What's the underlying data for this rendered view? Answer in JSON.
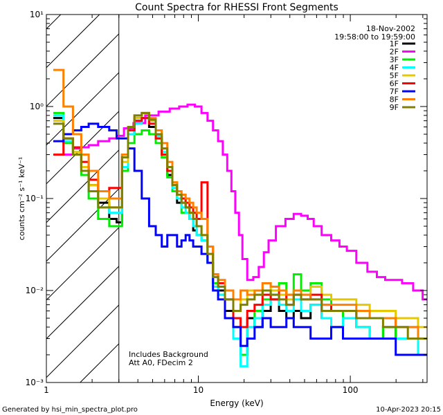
{
  "chart_data": {
    "type": "line",
    "title": "Count Spectra for RHESSI Front Segments",
    "xlabel": "Energy (keV)",
    "ylabel": "counts cm⁻² s⁻¹ keV⁻¹",
    "xscale": "log",
    "yscale": "log",
    "xlim": [
      1.0,
      320.0
    ],
    "ylim": [
      0.001,
      10.0
    ],
    "x_ticks": [
      {
        "value": 1,
        "label": "1"
      },
      {
        "value": 10,
        "label": "10"
      },
      {
        "value": 100,
        "label": "100"
      }
    ],
    "y_ticks": [
      {
        "value": 0.001,
        "label": "10⁻³"
      },
      {
        "value": 0.01,
        "label": "10⁻²"
      },
      {
        "value": 0.1,
        "label": "10⁻¹"
      },
      {
        "value": 1,
        "label": "10⁰"
      },
      {
        "value": 10,
        "label": "10¹"
      }
    ],
    "hatched_region_x": [
      1.0,
      3.0
    ],
    "date": "18-Nov-2002",
    "time_range": "19:58:00 to 19:59:00",
    "annotations": [
      "Includes Background",
      "Att A0, FDecim 2"
    ],
    "legend_position": "top-right",
    "series": [
      {
        "name": "1F",
        "color": "#000000",
        "x": [
          1.2,
          1.4,
          1.6,
          1.8,
          2.0,
          2.4,
          2.8,
          3.0,
          3.3,
          3.6,
          4.0,
          4.5,
          5.0,
          5.5,
          6.0,
          6.5,
          7.0,
          7.5,
          8.0,
          8.5,
          9.0,
          9.5,
          10.0,
          11.0,
          12.0,
          13.0,
          14.0,
          16.0,
          18.0,
          20.0,
          22.0,
          25.0,
          28.0,
          32.0,
          36.0,
          40.0,
          45.0,
          50.0,
          60.0,
          70.0,
          80.0,
          100.0,
          120.0,
          150.0,
          180.0,
          220.0,
          260.0,
          300.0
        ],
        "y": [
          0.75,
          0.45,
          0.35,
          0.22,
          0.14,
          0.09,
          0.06,
          0.055,
          0.2,
          0.5,
          0.75,
          0.75,
          0.6,
          0.45,
          0.3,
          0.18,
          0.12,
          0.09,
          0.09,
          0.08,
          0.06,
          0.045,
          0.04,
          0.035,
          0.02,
          0.012,
          0.01,
          0.006,
          0.004,
          0.002,
          0.005,
          0.004,
          0.006,
          0.008,
          0.006,
          0.005,
          0.006,
          0.005,
          0.007,
          0.005,
          0.004,
          0.005,
          0.004,
          0.003,
          0.004,
          0.003,
          0.003,
          0.002
        ]
      },
      {
        "name": "2F",
        "color": "#ff00ff",
        "x": [
          1.2,
          1.4,
          1.6,
          1.8,
          2.0,
          2.4,
          2.8,
          3.0,
          3.5,
          4.0,
          5.0,
          6.0,
          7.0,
          8.0,
          9.0,
          10.0,
          11.0,
          12.0,
          13.0,
          14.0,
          15.0,
          16.0,
          17.0,
          18.0,
          19.0,
          20.0,
          22.0,
          24.0,
          26.0,
          28.0,
          30.0,
          35.0,
          40.0,
          45.0,
          50.0,
          55.0,
          60.0,
          70.0,
          80.0,
          90.0,
          100.0,
          120.0,
          140.0,
          160.0,
          180.0,
          200.0,
          240.0,
          280.0,
          320.0
        ],
        "y": [
          0.3,
          0.3,
          0.35,
          0.36,
          0.38,
          0.42,
          0.45,
          0.48,
          0.58,
          0.66,
          0.8,
          0.88,
          0.95,
          1.0,
          1.05,
          1.0,
          0.85,
          0.7,
          0.55,
          0.42,
          0.3,
          0.2,
          0.12,
          0.07,
          0.04,
          0.022,
          0.013,
          0.014,
          0.018,
          0.026,
          0.035,
          0.05,
          0.06,
          0.068,
          0.065,
          0.06,
          0.05,
          0.04,
          0.035,
          0.03,
          0.027,
          0.02,
          0.016,
          0.014,
          0.013,
          0.013,
          0.012,
          0.01,
          0.008
        ]
      },
      {
        "name": "3F",
        "color": "#00ee00",
        "x": [
          1.2,
          1.4,
          1.6,
          1.8,
          2.0,
          2.4,
          2.8,
          3.0,
          3.3,
          3.6,
          4.0,
          4.5,
          5.0,
          5.5,
          6.0,
          6.5,
          7.0,
          7.5,
          8.0,
          8.5,
          9.0,
          9.5,
          10.0,
          11.0,
          12.0,
          13.0,
          14.0,
          16.0,
          18.0,
          20.0,
          22.0,
          25.0,
          28.0,
          32.0,
          36.0,
          40.0,
          45.0,
          50.0,
          60.0,
          70.0,
          80.0,
          100.0,
          120.0,
          150.0,
          180.0,
          220.0,
          260.0,
          300.0
        ],
        "y": [
          0.85,
          0.4,
          0.3,
          0.18,
          0.1,
          0.06,
          0.05,
          0.05,
          0.2,
          0.4,
          0.5,
          0.55,
          0.5,
          0.4,
          0.28,
          0.17,
          0.12,
          0.1,
          0.07,
          0.07,
          0.06,
          0.05,
          0.04,
          0.035,
          0.02,
          0.012,
          0.009,
          0.005,
          0.004,
          0.002,
          0.004,
          0.006,
          0.008,
          0.01,
          0.012,
          0.009,
          0.015,
          0.01,
          0.012,
          0.008,
          0.006,
          0.005,
          0.004,
          0.003,
          0.004,
          0.003,
          0.003,
          0.002
        ]
      },
      {
        "name": "4F",
        "color": "#00ffff",
        "x": [
          1.2,
          1.4,
          1.6,
          1.8,
          2.0,
          2.4,
          2.8,
          3.0,
          3.3,
          3.6,
          4.0,
          4.5,
          5.0,
          5.5,
          6.0,
          6.5,
          7.0,
          7.5,
          8.0,
          8.5,
          9.0,
          9.5,
          10.0,
          11.0,
          12.0,
          13.0,
          14.0,
          16.0,
          18.0,
          20.0,
          22.0,
          25.0,
          28.0,
          32.0,
          36.0,
          40.0,
          45.0,
          50.0,
          60.0,
          70.0,
          80.0,
          100.0,
          120.0,
          150.0,
          180.0,
          220.0,
          260.0,
          300.0
        ],
        "y": [
          0.8,
          0.42,
          0.32,
          0.2,
          0.12,
          0.08,
          0.07,
          0.07,
          0.22,
          0.5,
          0.65,
          0.75,
          0.65,
          0.48,
          0.32,
          0.2,
          0.13,
          0.1,
          0.08,
          0.07,
          0.06,
          0.05,
          0.04,
          0.035,
          0.02,
          0.011,
          0.009,
          0.005,
          0.003,
          0.0015,
          0.004,
          0.005,
          0.007,
          0.009,
          0.007,
          0.006,
          0.008,
          0.006,
          0.007,
          0.005,
          0.004,
          0.005,
          0.004,
          0.003,
          0.003,
          0.003,
          0.003,
          0.002
        ]
      },
      {
        "name": "5F",
        "color": "#e6c800",
        "x": [
          1.2,
          1.4,
          1.6,
          1.8,
          2.0,
          2.4,
          2.8,
          3.0,
          3.3,
          3.6,
          4.0,
          4.5,
          5.0,
          5.5,
          6.0,
          6.5,
          7.0,
          7.5,
          8.0,
          8.5,
          9.0,
          9.5,
          10.0,
          11.0,
          12.0,
          13.0,
          14.0,
          16.0,
          18.0,
          20.0,
          22.0,
          25.0,
          28.0,
          32.0,
          36.0,
          40.0,
          45.0,
          50.0,
          60.0,
          70.0,
          80.0,
          100.0,
          120.0,
          150.0,
          180.0,
          220.0,
          260.0,
          300.0
        ],
        "y": [
          0.7,
          0.45,
          0.32,
          0.22,
          0.14,
          0.1,
          0.08,
          0.08,
          0.25,
          0.55,
          0.75,
          0.85,
          0.7,
          0.5,
          0.35,
          0.22,
          0.15,
          0.12,
          0.1,
          0.09,
          0.07,
          0.06,
          0.05,
          0.04,
          0.025,
          0.015,
          0.012,
          0.008,
          0.006,
          0.008,
          0.01,
          0.009,
          0.012,
          0.01,
          0.009,
          0.008,
          0.01,
          0.009,
          0.011,
          0.009,
          0.008,
          0.008,
          0.007,
          0.006,
          0.006,
          0.005,
          0.005,
          0.004
        ]
      },
      {
        "name": "6F",
        "color": "#ff0000",
        "x": [
          1.2,
          1.4,
          1.6,
          1.8,
          2.0,
          2.4,
          2.8,
          3.0,
          3.3,
          3.6,
          4.0,
          4.5,
          5.0,
          5.5,
          6.0,
          6.5,
          7.0,
          7.5,
          8.0,
          8.5,
          9.0,
          9.5,
          10.0,
          11.0,
          12.0,
          13.0,
          14.0,
          16.0,
          18.0,
          20.0,
          22.0,
          25.0,
          28.0,
          32.0,
          36.0,
          40.0,
          45.0,
          50.0,
          60.0,
          70.0,
          80.0,
          100.0,
          120.0,
          150.0,
          180.0,
          220.0,
          260.0,
          300.0
        ],
        "y": [
          0.3,
          0.45,
          0.36,
          0.25,
          0.16,
          0.12,
          0.13,
          0.13,
          0.3,
          0.55,
          0.7,
          0.75,
          0.65,
          0.45,
          0.3,
          0.2,
          0.14,
          0.11,
          0.1,
          0.09,
          0.08,
          0.07,
          0.06,
          0.15,
          0.03,
          0.015,
          0.012,
          0.008,
          0.005,
          0.004,
          0.006,
          0.007,
          0.009,
          0.008,
          0.01,
          0.007,
          0.009,
          0.008,
          0.009,
          0.007,
          0.006,
          0.006,
          0.005,
          0.005,
          0.005,
          0.004,
          0.004,
          0.003
        ]
      },
      {
        "name": "7F",
        "color": "#0000ff",
        "x": [
          1.2,
          1.4,
          1.6,
          1.8,
          2.0,
          2.4,
          2.8,
          3.0,
          3.3,
          3.6,
          4.0,
          4.5,
          5.0,
          5.5,
          6.0,
          6.5,
          7.0,
          7.5,
          8.0,
          8.5,
          9.0,
          9.5,
          10.0,
          11.0,
          12.0,
          13.0,
          14.0,
          16.0,
          18.0,
          20.0,
          22.0,
          25.0,
          28.0,
          32.0,
          36.0,
          40.0,
          45.0,
          50.0,
          60.0,
          70.0,
          80.0,
          100.0,
          120.0,
          150.0,
          180.0,
          220.0,
          260.0,
          300.0
        ],
        "y": [
          0.42,
          0.5,
          0.55,
          0.6,
          0.65,
          0.6,
          0.55,
          0.45,
          0.45,
          0.35,
          0.2,
          0.1,
          0.05,
          0.04,
          0.03,
          0.04,
          0.04,
          0.03,
          0.035,
          0.04,
          0.035,
          0.03,
          0.03,
          0.025,
          0.02,
          0.01,
          0.008,
          0.005,
          0.004,
          0.0025,
          0.003,
          0.004,
          0.005,
          0.004,
          0.004,
          0.005,
          0.004,
          0.004,
          0.003,
          0.003,
          0.004,
          0.003,
          0.003,
          0.003,
          0.003,
          0.002,
          0.002,
          0.002
        ]
      },
      {
        "name": "8F",
        "color": "#ff8000",
        "x": [
          1.2,
          1.4,
          1.6,
          1.8,
          2.0,
          2.4,
          2.8,
          3.0,
          3.3,
          3.6,
          4.0,
          4.5,
          5.0,
          5.5,
          6.0,
          6.5,
          7.0,
          7.5,
          8.0,
          8.5,
          9.0,
          9.5,
          10.0,
          11.0,
          12.0,
          13.0,
          14.0,
          16.0,
          18.0,
          20.0,
          22.0,
          25.0,
          28.0,
          32.0,
          36.0,
          40.0,
          45.0,
          50.0,
          60.0,
          70.0,
          80.0,
          100.0,
          120.0,
          150.0,
          180.0,
          220.0,
          260.0,
          300.0
        ],
        "y": [
          2.5,
          1.0,
          0.5,
          0.3,
          0.2,
          0.12,
          0.1,
          0.1,
          0.3,
          0.6,
          0.8,
          0.85,
          0.75,
          0.55,
          0.4,
          0.25,
          0.15,
          0.12,
          0.11,
          0.1,
          0.09,
          0.08,
          0.07,
          0.06,
          0.03,
          0.015,
          0.013,
          0.01,
          0.008,
          0.01,
          0.009,
          0.01,
          0.012,
          0.011,
          0.01,
          0.009,
          0.01,
          0.009,
          0.008,
          0.007,
          0.007,
          0.007,
          0.006,
          0.005,
          0.005,
          0.004,
          0.004,
          0.003
        ]
      },
      {
        "name": "9F",
        "color": "#808000",
        "x": [
          1.2,
          1.4,
          1.6,
          1.8,
          2.0,
          2.4,
          2.8,
          3.0,
          3.3,
          3.6,
          4.0,
          4.5,
          5.0,
          5.5,
          6.0,
          6.5,
          7.0,
          7.5,
          8.0,
          8.5,
          9.0,
          9.5,
          10.0,
          11.0,
          12.0,
          13.0,
          14.0,
          16.0,
          18.0,
          20.0,
          22.0,
          25.0,
          28.0,
          32.0,
          36.0,
          40.0,
          45.0,
          50.0,
          60.0,
          70.0,
          80.0,
          100.0,
          120.0,
          150.0,
          180.0,
          220.0,
          260.0,
          300.0
        ],
        "y": [
          0.65,
          0.45,
          0.3,
          0.2,
          0.12,
          0.08,
          0.08,
          0.08,
          0.28,
          0.6,
          0.8,
          0.85,
          0.72,
          0.5,
          0.35,
          0.22,
          0.14,
          0.11,
          0.09,
          0.08,
          0.07,
          0.06,
          0.05,
          0.04,
          0.025,
          0.014,
          0.011,
          0.008,
          0.006,
          0.007,
          0.008,
          0.009,
          0.01,
          0.009,
          0.008,
          0.007,
          0.009,
          0.008,
          0.008,
          0.006,
          0.006,
          0.006,
          0.005,
          0.005,
          0.004,
          0.004,
          0.003,
          0.003
        ]
      }
    ]
  },
  "footer": {
    "generator": "Generated by hsi_min_spectra_plot.pro",
    "timestamp": "10-Apr-2023 20:15"
  }
}
